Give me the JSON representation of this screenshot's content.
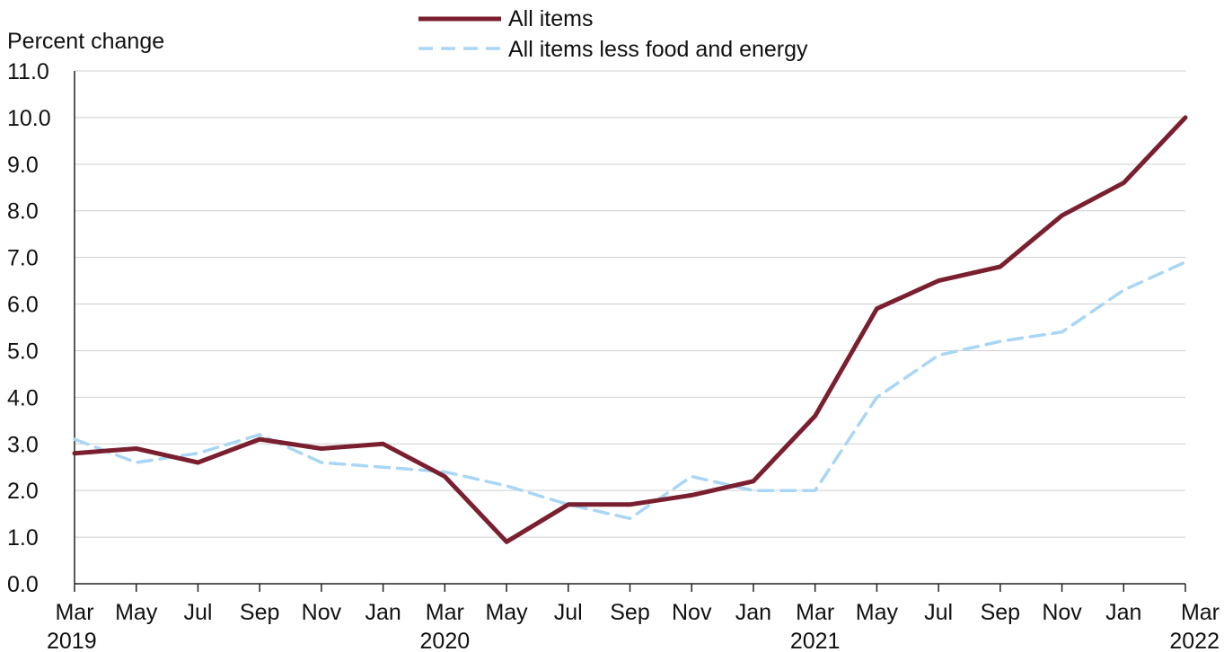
{
  "chart_data": {
    "type": "line",
    "title": "",
    "ylabel": "Percent change",
    "xlabel": "",
    "ylim": [
      0,
      11
    ],
    "yticks": [
      "0.0",
      "1.0",
      "2.0",
      "3.0",
      "4.0",
      "5.0",
      "6.0",
      "7.0",
      "8.0",
      "9.0",
      "10.0",
      "11.0"
    ],
    "x": [
      "Mar 2019",
      "May 2019",
      "Jul 2019",
      "Sep 2019",
      "Nov 2019",
      "Jan 2020",
      "Mar 2020",
      "May 2020",
      "Jul 2020",
      "Sep 2020",
      "Nov 2020",
      "Jan 2021",
      "Mar 2021",
      "May 2021",
      "Jul 2021",
      "Sep 2021",
      "Nov 2021",
      "Jan 2022",
      "Mar 2022"
    ],
    "x_tick_labels": [
      "Mar",
      "May",
      "Jul",
      "Sep",
      "Nov",
      "Jan",
      "Mar",
      "May",
      "Jul",
      "Sep",
      "Nov",
      "Jan",
      "Mar",
      "May",
      "Jul",
      "Sep",
      "Nov",
      "Jan",
      "Mar"
    ],
    "x_year_labels": [
      {
        "index": 0,
        "label": "2019"
      },
      {
        "index": 6,
        "label": "2020"
      },
      {
        "index": 12,
        "label": "2021"
      },
      {
        "index": 18,
        "label": "2022"
      }
    ],
    "grid": true,
    "legend_position": "top-center",
    "series": [
      {
        "name": "All items",
        "color": "#7a1f2f",
        "style": "solid",
        "values": [
          2.8,
          2.9,
          2.6,
          3.1,
          2.9,
          3.0,
          2.3,
          0.9,
          1.7,
          1.7,
          1.9,
          2.2,
          3.6,
          5.9,
          6.5,
          6.8,
          7.9,
          8.6,
          10.0
        ]
      },
      {
        "name": "All items less food and energy",
        "color": "#a9d6f5",
        "style": "dashed",
        "values": [
          3.1,
          2.6,
          2.8,
          3.2,
          2.6,
          2.5,
          2.4,
          2.1,
          1.7,
          1.4,
          2.3,
          2.0,
          2.0,
          4.0,
          4.9,
          5.2,
          5.4,
          6.3,
          6.9
        ]
      }
    ]
  }
}
